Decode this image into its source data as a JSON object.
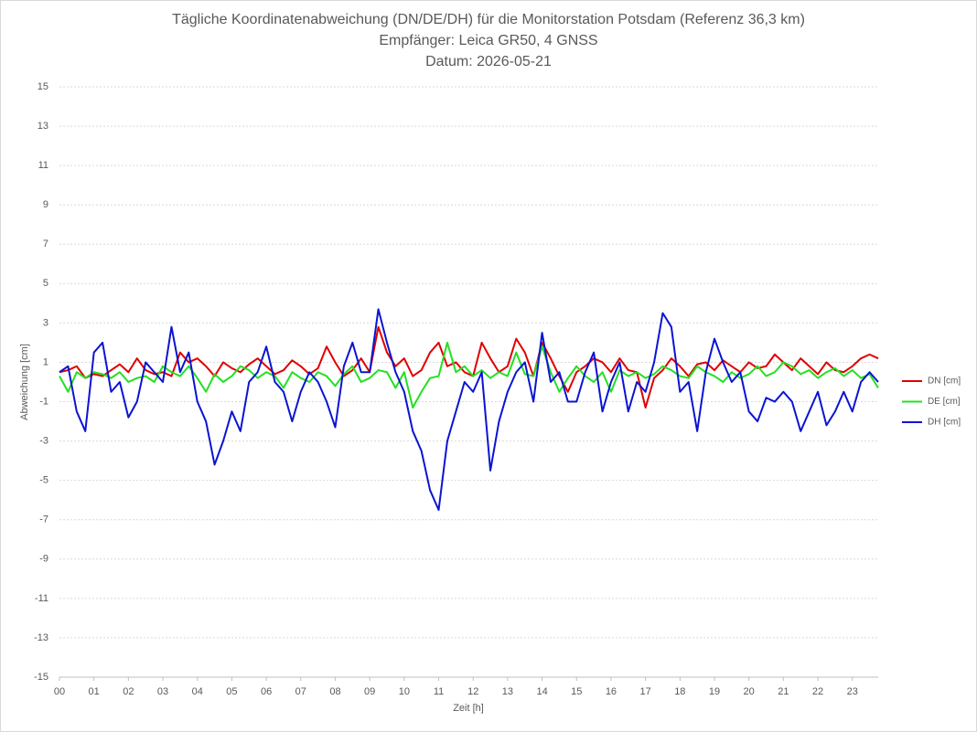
{
  "chart_data": {
    "type": "line",
    "title": "Tägliche Koordinatenabweichung (DN/DE/DH) für die Monitorstation Potsdam (Referenz 36,3 km)",
    "subtitle": [
      "Empfänger: Leica GR50, 4 GNSS",
      "Datum: 2026-05-21"
    ],
    "x_label": "Zeit [h]",
    "y_label": "Abweichung [cm]",
    "x": [
      0,
      0.25,
      0.5,
      0.75,
      1,
      1.25,
      1.5,
      1.75,
      2,
      2.25,
      2.5,
      2.75,
      3,
      3.25,
      3.5,
      3.75,
      4,
      4.25,
      4.5,
      4.75,
      5,
      5.25,
      5.5,
      5.75,
      6,
      6.25,
      6.5,
      6.75,
      7,
      7.25,
      7.5,
      7.75,
      8,
      8.25,
      8.5,
      8.75,
      9,
      9.25,
      9.5,
      9.75,
      10,
      10.25,
      10.5,
      10.75,
      11,
      11.25,
      11.5,
      11.75,
      12,
      12.25,
      12.5,
      12.75,
      13,
      13.25,
      13.5,
      13.75,
      14,
      14.25,
      14.5,
      14.75,
      15,
      15.25,
      15.5,
      15.75,
      16,
      16.25,
      16.5,
      16.75,
      17,
      17.25,
      17.5,
      17.75,
      18,
      18.25,
      18.5,
      18.75,
      19,
      19.25,
      19.5,
      19.75,
      20,
      20.25,
      20.5,
      20.75,
      21,
      21.25,
      21.5,
      21.75,
      22,
      22.25,
      22.5,
      22.75,
      23,
      23.25,
      23.5,
      23.75
    ],
    "series": [
      {
        "name": "DN [cm]",
        "color": "#e00000",
        "values": [
          0.5,
          0.6,
          0.8,
          0.2,
          0.4,
          0.3,
          0.6,
          0.9,
          0.5,
          1.2,
          0.6,
          0.4,
          0.5,
          0.3,
          1.5,
          1,
          1.2,
          0.8,
          0.3,
          1,
          0.7,
          0.5,
          0.9,
          1.2,
          0.8,
          0.4,
          0.6,
          1.1,
          0.8,
          0.4,
          0.7,
          1.8,
          1,
          0.3,
          0.6,
          1.2,
          0.5,
          2.8,
          1.5,
          0.8,
          1.2,
          0.3,
          0.6,
          1.5,
          2,
          0.8,
          1,
          0.5,
          0.3,
          2,
          1.2,
          0.5,
          0.8,
          2.2,
          1.5,
          0.3,
          2,
          1.2,
          0.3,
          -0.5,
          0.5,
          0.8,
          1.2,
          1,
          0.5,
          1.2,
          0.6,
          0.5,
          -1.3,
          0.2,
          0.6,
          1.2,
          0.8,
          0.3,
          0.9,
          1,
          0.6,
          1.1,
          0.8,
          0.5,
          1,
          0.7,
          0.8,
          1.4,
          1,
          0.6,
          1.2,
          0.8,
          0.4,
          1,
          0.6,
          0.5,
          0.8,
          1.2,
          1.4,
          1.2
        ]
      },
      {
        "name": "DE [cm]",
        "color": "#22e022",
        "values": [
          0.3,
          -0.5,
          0.5,
          0.2,
          0.5,
          0.4,
          0.2,
          0.5,
          0,
          0.2,
          0.3,
          0,
          0.8,
          0.5,
          0.3,
          0.8,
          0.2,
          -0.5,
          0.4,
          0,
          0.3,
          0.8,
          0.6,
          0.2,
          0.5,
          0.3,
          -0.3,
          0.5,
          0.2,
          0,
          0.5,
          0.3,
          -0.2,
          0.4,
          0.8,
          0,
          0.2,
          0.6,
          0.5,
          -0.3,
          0.5,
          -1.3,
          -0.5,
          0.2,
          0.3,
          2,
          0.5,
          0.8,
          0.3,
          0.6,
          0.2,
          0.5,
          0.3,
          1.5,
          0.4,
          0.3,
          1.8,
          0.5,
          -0.5,
          0.2,
          0.8,
          0.3,
          0,
          0.5,
          -0.5,
          0.6,
          0.3,
          0.5,
          0.2,
          0.4,
          0.8,
          0.6,
          0.3,
          0.2,
          0.8,
          0.5,
          0.3,
          0,
          0.5,
          0.2,
          0.4,
          0.8,
          0.3,
          0.5,
          1,
          0.8,
          0.4,
          0.6,
          0.2,
          0.5,
          0.7,
          0.3,
          0.6,
          0.2,
          0.4,
          -0.3
        ]
      },
      {
        "name": "DH [cm]",
        "color": "#0a14d2",
        "values": [
          0.5,
          0.8,
          -1.5,
          -2.5,
          1.5,
          2,
          -0.5,
          0,
          -1.8,
          -1,
          1,
          0.5,
          0,
          2.8,
          0.5,
          1.5,
          -1,
          -2,
          -4.2,
          -3,
          -1.5,
          -2.5,
          0,
          0.5,
          1.8,
          0,
          -0.5,
          -2,
          -0.5,
          0.5,
          0,
          -1,
          -2.3,
          0.8,
          2,
          0.5,
          0.5,
          3.7,
          2,
          0.5,
          -0.5,
          -2.5,
          -3.5,
          -5.5,
          -6.5,
          -3,
          -1.5,
          0,
          -0.5,
          0.5,
          -4.5,
          -2,
          -0.5,
          0.5,
          1,
          -1,
          2.5,
          0,
          0.5,
          -1,
          -1,
          0.5,
          1.5,
          -1.5,
          0,
          1,
          -1.5,
          0,
          -0.5,
          1,
          3.5,
          2.8,
          -0.5,
          0,
          -2.5,
          0.5,
          2.2,
          1,
          0,
          0.5,
          -1.5,
          -2,
          -0.8,
          -1,
          -0.5,
          -1,
          -2.5,
          -1.5,
          -0.5,
          -2.2,
          -1.5,
          -0.5,
          -1.5,
          0,
          0.5,
          0
        ]
      }
    ],
    "xlim": [
      0,
      23.75
    ],
    "xticks": [
      {
        "value": 0,
        "label": "00"
      },
      {
        "value": 1,
        "label": "01"
      },
      {
        "value": 2,
        "label": "02"
      },
      {
        "value": 3,
        "label": "03"
      },
      {
        "value": 4,
        "label": "04"
      },
      {
        "value": 5,
        "label": "05"
      },
      {
        "value": 6,
        "label": "06"
      },
      {
        "value": 7,
        "label": "07"
      },
      {
        "value": 8,
        "label": "08"
      },
      {
        "value": 9,
        "label": "09"
      },
      10,
      11,
      12,
      13,
      14,
      15,
      16,
      17,
      18,
      19,
      20,
      21,
      22,
      23
    ],
    "ylim": [
      -15,
      15
    ],
    "yticks": [
      -15,
      -13,
      -11,
      -9,
      -7,
      -5,
      -3,
      -1,
      1,
      3,
      5,
      7,
      9,
      11,
      13,
      15
    ],
    "grid": true,
    "legend": "right"
  }
}
